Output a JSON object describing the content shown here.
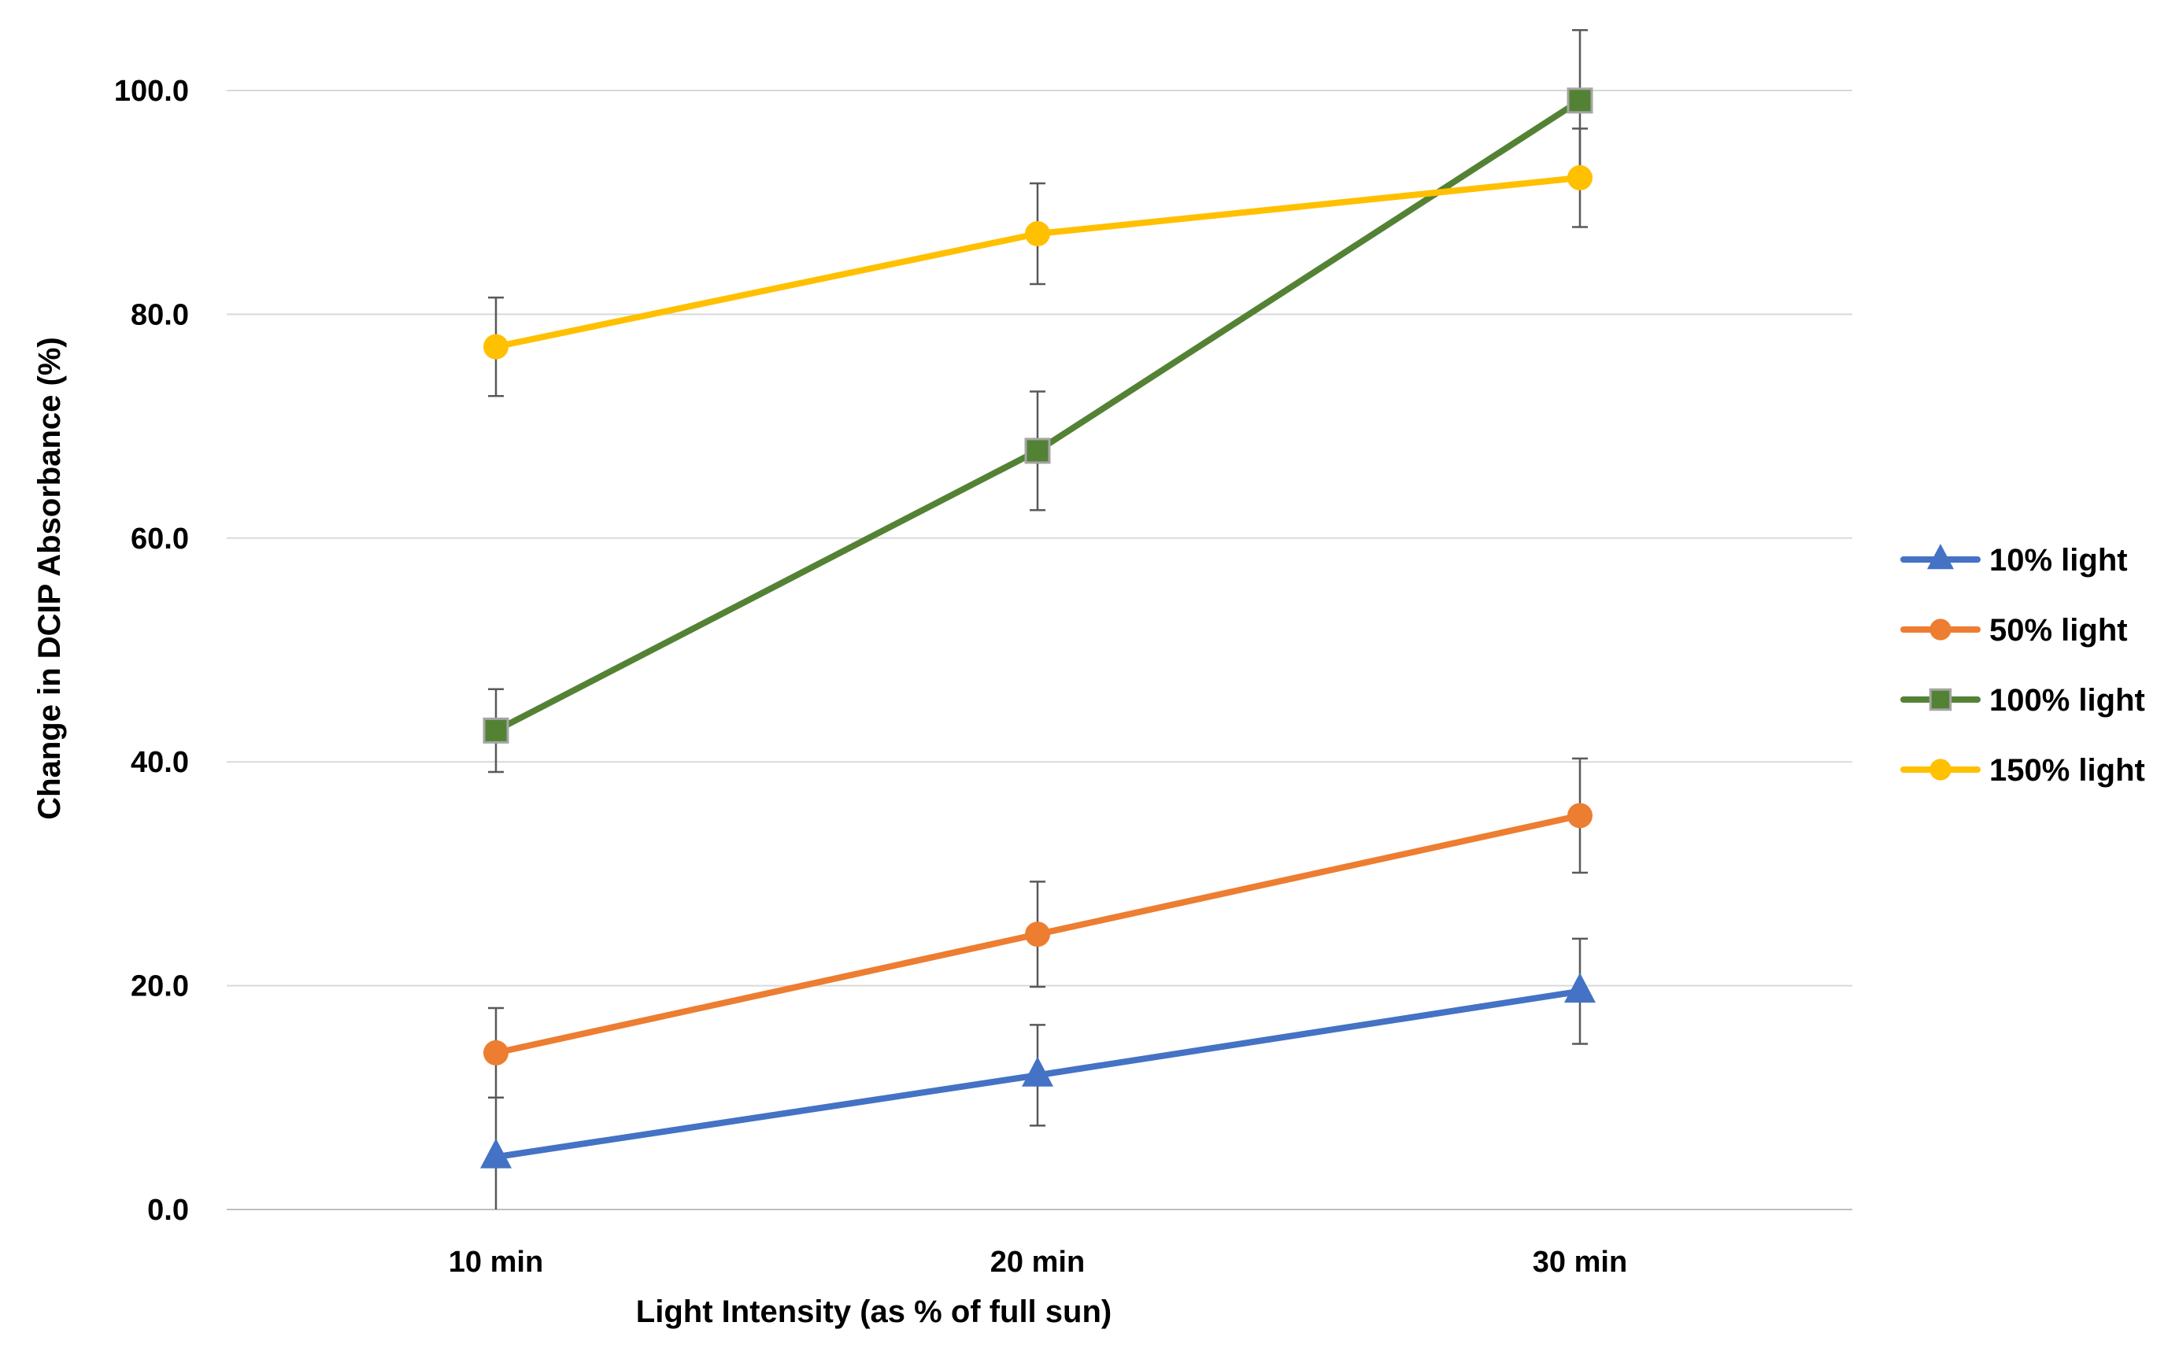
{
  "chart_data": {
    "type": "line",
    "title": "",
    "xlabel": "Light Intensity (as % of full sun)",
    "ylabel": "Change in DCIP Absorbance (%)",
    "categories": [
      "10 min",
      "20 min",
      "30 min"
    ],
    "ylim": [
      0,
      100
    ],
    "yticks": [
      0,
      20,
      40,
      60,
      80,
      100
    ],
    "ytick_labels": [
      "0.0",
      "20.0",
      "40.0",
      "60.0",
      "80.0",
      "100.0"
    ],
    "grid": "horizontal",
    "legend_position": "right",
    "series": [
      {
        "name": "10% light",
        "color": "#4472C4",
        "marker": "triangle",
        "values": [
          4.7,
          12.0,
          19.5
        ],
        "error": [
          5.3,
          4.5,
          4.7
        ]
      },
      {
        "name": "50% light",
        "color": "#ED7D31",
        "marker": "circle",
        "values": [
          14.0,
          24.6,
          35.2
        ],
        "error": [
          4.0,
          4.7,
          5.1
        ]
      },
      {
        "name": "100% light",
        "color": "#548235",
        "marker": "square",
        "values": [
          42.8,
          67.8,
          99.1
        ],
        "error": [
          3.7,
          5.3,
          6.3
        ]
      },
      {
        "name": "150% light",
        "color": "#FFC000",
        "marker": "circle",
        "values": [
          77.1,
          87.2,
          92.2
        ],
        "error": [
          4.4,
          4.5,
          4.4
        ]
      }
    ]
  }
}
